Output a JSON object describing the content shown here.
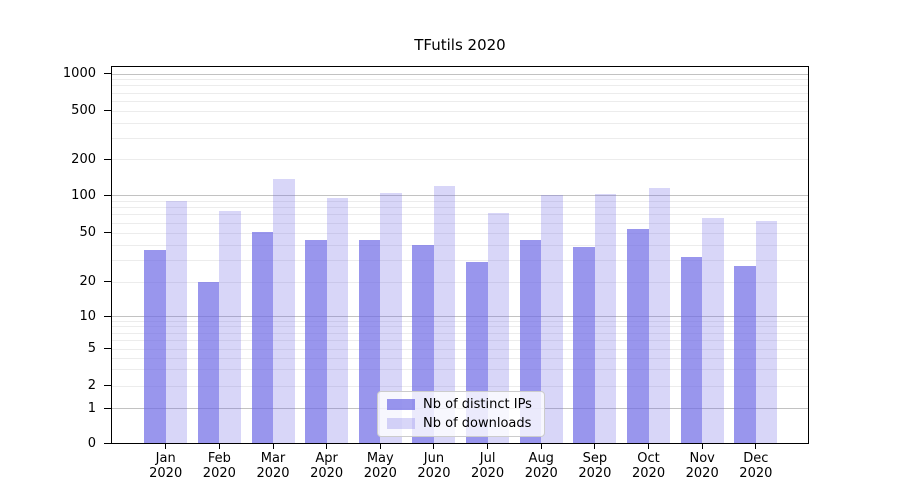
{
  "title": "TFutils 2020",
  "chart_data": {
    "type": "bar",
    "title": "TFutils 2020",
    "categories": [
      "Jan",
      "Feb",
      "Mar",
      "Apr",
      "May",
      "Jun",
      "Jul",
      "Aug",
      "Sep",
      "Oct",
      "Nov",
      "Dec"
    ],
    "category_year": "2020",
    "series": [
      {
        "name": "Nb of distinct IPs",
        "color": "rgba(110,105,230,0.70)",
        "values": [
          36,
          20,
          51,
          44,
          44,
          40,
          29,
          44,
          38,
          54,
          32,
          27
        ]
      },
      {
        "name": "Nb of downloads",
        "color": "rgba(110,105,230,0.27)",
        "values": [
          90,
          75,
          136,
          95,
          104,
          119,
          72,
          100,
          101,
          114,
          66,
          62
        ]
      }
    ],
    "yticks": [
      0,
      1,
      2,
      5,
      10,
      20,
      50,
      100,
      200,
      500,
      1000
    ],
    "yscale": "log-like with zero baseline",
    "ylim": [
      0,
      1150
    ],
    "xlabel": "",
    "ylabel": "",
    "grid": "horizontal major+minor",
    "legend_position": "lower center inside plot",
    "colors": {
      "bar_distinct_ips": "#9e9bef",
      "bar_downloads": "#dcdaf8",
      "grid_major": "#c2c2c2",
      "grid_minor": "#ececec",
      "spine": "#000000",
      "background": "#ffffff"
    }
  }
}
